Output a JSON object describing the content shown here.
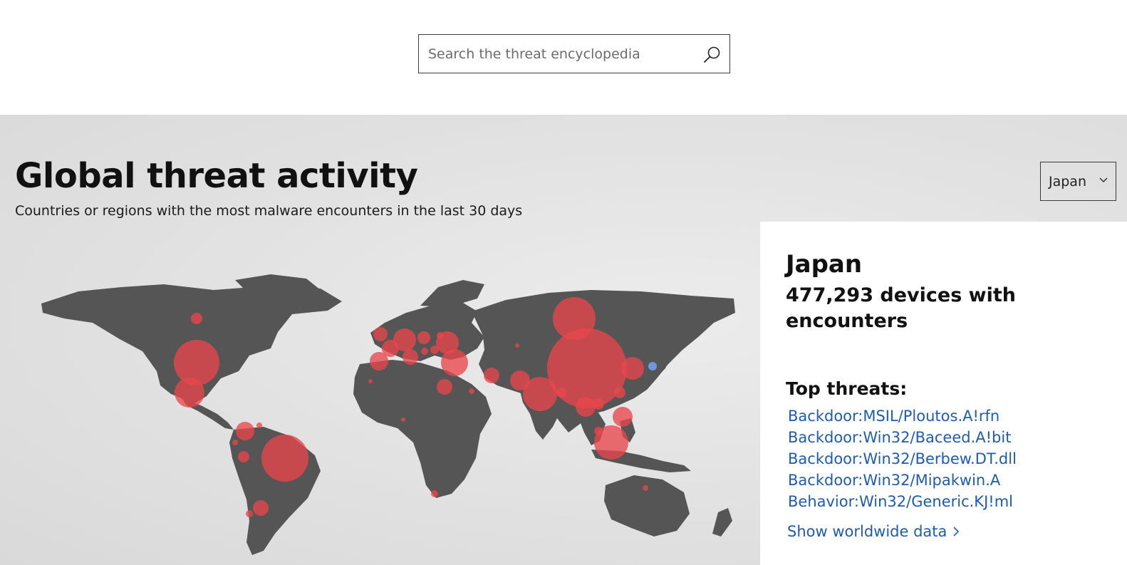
{
  "search": {
    "placeholder": "Search the threat encyclopedia"
  },
  "section": {
    "title": "Global threat activity",
    "subtitle": "Countries or regions with the most malware encounters in the last 30 days"
  },
  "region_select": {
    "selected": "Japan"
  },
  "panel": {
    "country": "Japan",
    "devices": "477,293 devices with encounters",
    "top_threats_heading": "Top threats:",
    "threats": [
      "Backdoor:MSIL/Ploutos.A!rfn",
      "Backdoor:Win32/Baceed.A!bit",
      "Backdoor:Win32/Berbew.DT.dll",
      "Backdoor:Win32/Mipakwin.A",
      "Behavior:Win32/Generic.KJ!ml"
    ],
    "worldwide_link": "Show worldwide data"
  },
  "colors": {
    "land": "#555555",
    "bubble": "#e8474c",
    "selected_bubble": "#6f9be8",
    "link": "#1e5cae"
  },
  "icons": {
    "search": "search-icon",
    "dropdown": "chevron-down-icon",
    "link_arrow": "chevron-right-icon"
  }
}
